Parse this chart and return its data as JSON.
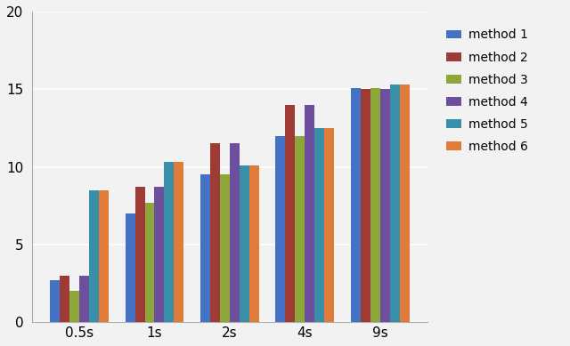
{
  "categories": [
    "0.5s",
    "1s",
    "2s",
    "4s",
    "9s"
  ],
  "series": {
    "method 1": [
      2.7,
      7.0,
      9.5,
      12.0,
      15.1
    ],
    "method 2": [
      3.0,
      8.7,
      11.5,
      14.0,
      15.0
    ],
    "method 3": [
      2.0,
      7.7,
      9.5,
      12.0,
      15.1
    ],
    "method 4": [
      3.0,
      8.7,
      11.5,
      14.0,
      15.0
    ],
    "method 5": [
      8.5,
      10.3,
      10.1,
      12.5,
      15.3
    ],
    "method 6": [
      8.5,
      10.3,
      10.1,
      12.5,
      15.3
    ]
  },
  "colors": {
    "method 1": "#4472C4",
    "method 2": "#9E3B34",
    "method 3": "#8DA73A",
    "method 4": "#6E4F9E",
    "method 5": "#3A8FA8",
    "method 6": "#E07B39"
  },
  "ylim": [
    0,
    20
  ],
  "yticks": [
    0,
    5,
    10,
    15,
    20
  ],
  "background_color": "#F2F2F2",
  "plot_bg_color": "#F2F2F2",
  "grid_color": "#FFFFFF"
}
